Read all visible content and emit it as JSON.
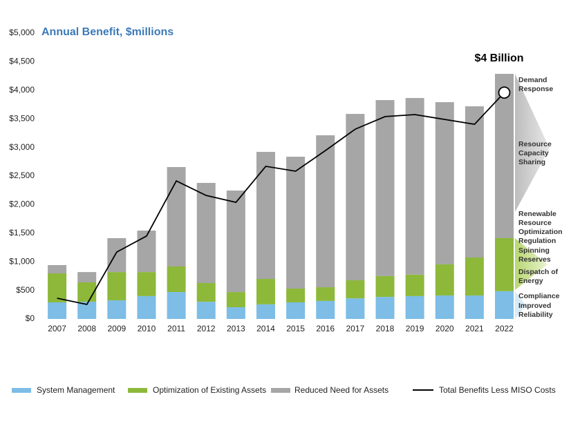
{
  "chart_data": {
    "type": "bar",
    "stacked": true,
    "title": "Annual Benefit, $millions",
    "categories": [
      "2007",
      "2008",
      "2009",
      "2010",
      "2011",
      "2012",
      "2013",
      "2014",
      "2015",
      "2016",
      "2017",
      "2018",
      "2019",
      "2020",
      "2021",
      "2022"
    ],
    "series": [
      {
        "name": "System Management",
        "color": "#7dbde6",
        "values": [
          290,
          300,
          325,
          400,
          470,
          300,
          205,
          255,
          290,
          315,
          360,
          385,
          400,
          410,
          410,
          485
        ]
      },
      {
        "name": "Optimization of Existing Assets",
        "color": "#8db83a",
        "values": [
          507,
          340,
          495,
          420,
          448,
          328,
          265,
          445,
          241,
          240,
          316,
          365,
          375,
          545,
          665,
          928
        ]
      },
      {
        "name": "Reduced Need for Assets",
        "color": "#a6a6a6",
        "values": [
          145,
          180,
          593,
          726,
          1739,
          1752,
          1776,
          2223,
          2307,
          2658,
          2911,
          3079,
          3090,
          2837,
          2645,
          2875
        ]
      },
      {
        "name": "Total Benefits Less MISO Costs",
        "color": "#000000",
        "type": "line",
        "values": [
          362,
          254,
          1170,
          1450,
          2415,
          2160,
          2040,
          2670,
          2585,
          2945,
          3320,
          3540,
          3575,
          3490,
          3405,
          3960
        ]
      }
    ],
    "ylim": [
      0,
      5000
    ],
    "yticks": [
      {
        "value": 0,
        "label": "$0"
      },
      {
        "value": 500,
        "label": "$500"
      },
      {
        "value": 1000,
        "label": "$1,000"
      },
      {
        "value": 1500,
        "label": "$1,500"
      },
      {
        "value": 2000,
        "label": "$2,000"
      },
      {
        "value": 2500,
        "label": "$2,500"
      },
      {
        "value": 3000,
        "label": "$3,000"
      },
      {
        "value": 3500,
        "label": "$3,500"
      },
      {
        "value": 4000,
        "label": "$4,000"
      },
      {
        "value": 4500,
        "label": "$4,500"
      },
      {
        "value": 5000,
        "label": "$5,000"
      }
    ],
    "grid": false,
    "legend": "bottom",
    "annotations": {
      "total": "$4 Billion",
      "components": [
        [
          "Demand",
          "Response"
        ],
        [
          "Resource",
          "Capacity",
          "Sharing"
        ],
        [
          "Renewable",
          "Resource",
          "Optimization"
        ],
        [
          "Regulation"
        ],
        [
          "Spinning",
          "Reserves"
        ],
        [
          "Dispatch of",
          "Energy"
        ],
        [
          "Compliance"
        ],
        [
          "Improved",
          "Reliability"
        ]
      ]
    }
  }
}
